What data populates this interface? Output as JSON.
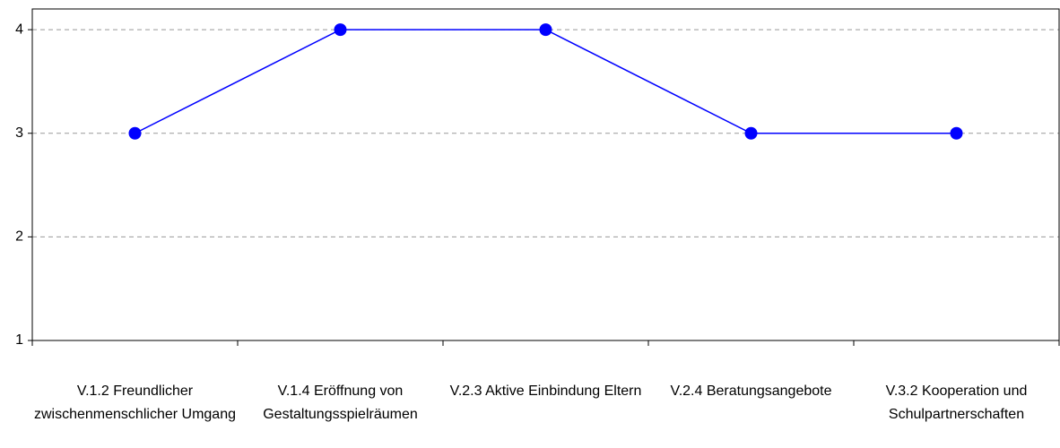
{
  "chart_data": {
    "type": "line",
    "categories": [
      "V.1.2 Freundlicher zwischenmenschlicher Umgang",
      "V.1.4 Eröffnung von Gestaltungsspielräumen",
      "V.2.3 Aktive Einbindung Eltern",
      "V.2.4 Beratungsangebote",
      "V.3.2 Kooperation und Schulpartnerschaften"
    ],
    "series": [
      {
        "color": "#0000ff",
        "values": [
          3,
          4,
          4,
          3,
          3
        ]
      }
    ],
    "ylim": [
      1,
      4.2
    ],
    "yticks": [
      1,
      2,
      3,
      4
    ],
    "grid": true
  }
}
